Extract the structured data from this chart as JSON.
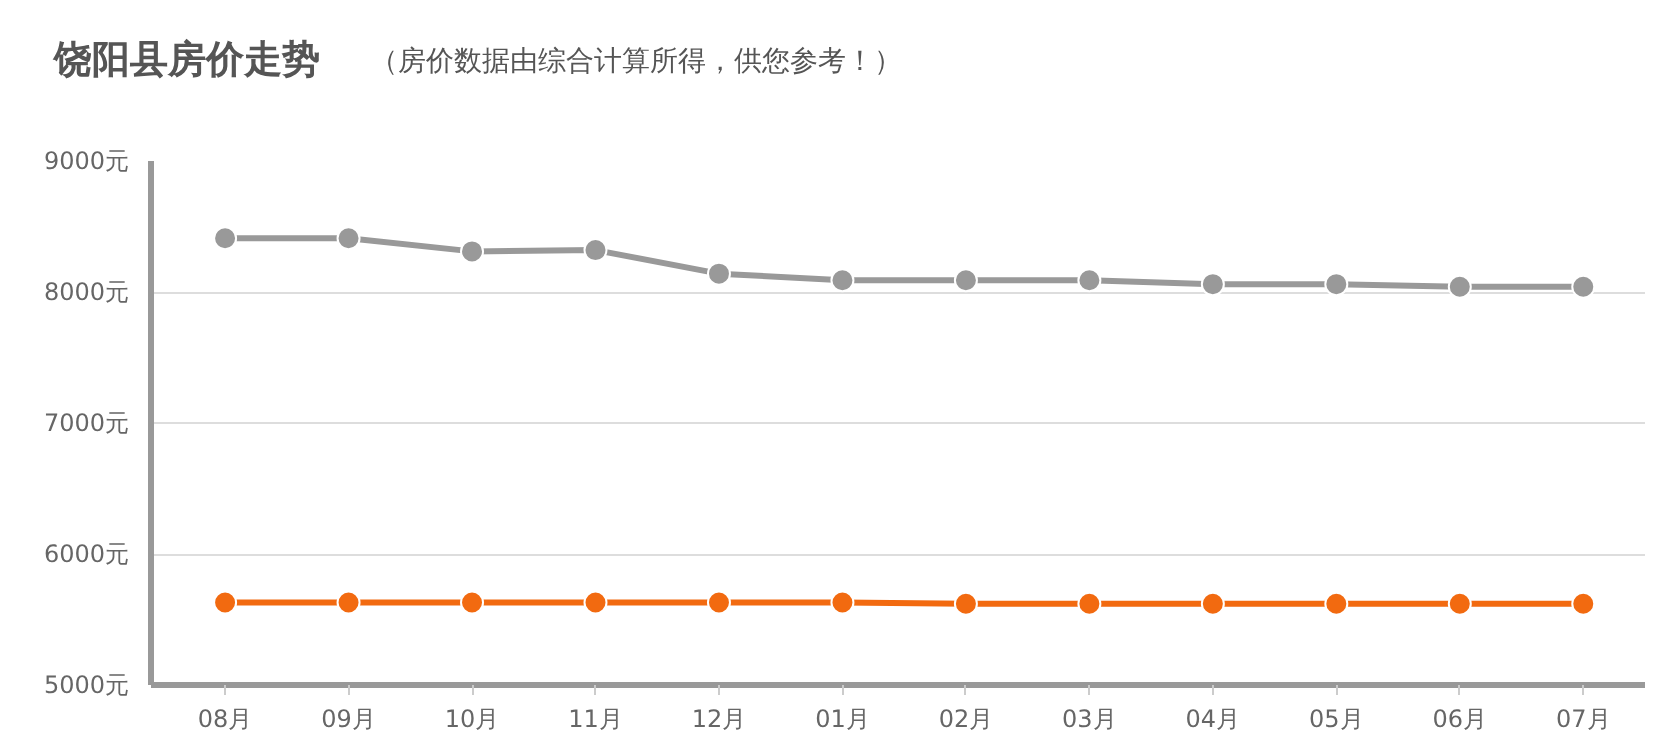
{
  "chart_data": {
    "type": "line",
    "title": "饶阳县房价走势",
    "subtitle": "（房价数据由综合计算所得，供您参考！）",
    "categories": [
      "08月",
      "09月",
      "10月",
      "11月",
      "12月",
      "01月",
      "02月",
      "03月",
      "04月",
      "05月",
      "06月",
      "07月"
    ],
    "series": [
      {
        "color": "#999999",
        "values": [
          8410,
          8410,
          8310,
          8320,
          8140,
          8090,
          8090,
          8090,
          8060,
          8060,
          8040,
          8040
        ]
      },
      {
        "color": "#f26a10",
        "values": [
          5630,
          5630,
          5630,
          5630,
          5630,
          5630,
          5620,
          5620,
          5620,
          5620,
          5620,
          5620
        ]
      }
    ],
    "ylim": [
      5000,
      9000
    ],
    "yticks": [
      {
        "value": 5000,
        "label": "5000元"
      },
      {
        "value": 6000,
        "label": "6000元"
      },
      {
        "value": 7000,
        "label": "7000元"
      },
      {
        "value": 8000,
        "label": "8000元"
      },
      {
        "value": 9000,
        "label": "9000元"
      }
    ],
    "grid": "y",
    "marker": "circle",
    "line_style": "solid"
  }
}
